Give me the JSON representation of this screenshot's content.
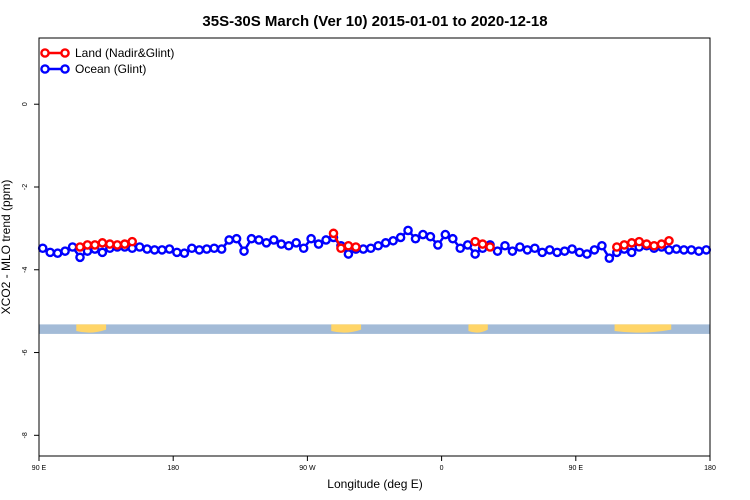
{
  "chart_data": {
    "type": "line",
    "title": "35S-30S March (Ver 10)   2015-01-01 to 2020-12-18",
    "xlabel": "Longitude (deg E)",
    "ylabel": "XCO2 - MLO trend (ppm)",
    "x_ticks": [
      {
        "value": 90,
        "label": "90 E"
      },
      {
        "value": 180,
        "label": "180"
      },
      {
        "value": 270,
        "label": "90 W"
      },
      {
        "value": 360,
        "label": "0"
      },
      {
        "value": 450,
        "label": "90 E"
      },
      {
        "value": 540,
        "label": "180"
      }
    ],
    "y_ticks": [
      0,
      -2,
      -4,
      -6,
      -8
    ],
    "xlim": [
      90,
      540
    ],
    "ylim": [
      -8.5,
      1.6
    ],
    "grid": false,
    "legend_position": "top-left",
    "series": [
      {
        "name": "Land (Nadir&Glint)",
        "color": "#ff0000",
        "x": [
          117.5,
          122.5,
          127.5,
          132.5,
          137.5,
          142.5,
          147.5,
          152.5,
          287.5,
          292.5,
          297.5,
          302.5,
          382.5,
          387.5,
          392.5,
          477.5,
          482.5,
          487.5,
          492.5,
          497.5,
          502.5,
          507.5,
          512.5
        ],
        "y": [
          -3.45,
          -3.4,
          -3.4,
          -3.35,
          -3.38,
          -3.4,
          -3.38,
          -3.32,
          -3.12,
          -3.48,
          -3.42,
          -3.45,
          -3.32,
          -3.38,
          -3.45,
          -3.45,
          -3.4,
          -3.35,
          -3.32,
          -3.38,
          -3.42,
          -3.38,
          -3.3
        ]
      },
      {
        "name": "Ocean (Glint)",
        "color": "#0000ff",
        "x": [
          92.5,
          97.5,
          102.5,
          107.5,
          112.5,
          117.5,
          122.5,
          127.5,
          132.5,
          137.5,
          142.5,
          147.5,
          152.5,
          157.5,
          162.5,
          167.5,
          172.5,
          177.5,
          182.5,
          187.5,
          192.5,
          197.5,
          202.5,
          207.5,
          212.5,
          217.5,
          222.5,
          227.5,
          232.5,
          237.5,
          242.5,
          247.5,
          252.5,
          257.5,
          262.5,
          267.5,
          272.5,
          277.5,
          282.5,
          287.5,
          292.5,
          297.5,
          302.5,
          307.5,
          312.5,
          317.5,
          322.5,
          327.5,
          332.5,
          337.5,
          342.5,
          347.5,
          352.5,
          357.5,
          362.5,
          367.5,
          372.5,
          377.5,
          382.5,
          387.5,
          392.5,
          397.5,
          402.5,
          407.5,
          412.5,
          417.5,
          422.5,
          427.5,
          432.5,
          437.5,
          442.5,
          447.5,
          452.5,
          457.5,
          462.5,
          467.5,
          472.5,
          477.5,
          482.5,
          487.5,
          492.5,
          497.5,
          502.5,
          507.5,
          512.5,
          517.5,
          522.5,
          527.5,
          532.5,
          537.5
        ],
        "y": [
          -3.48,
          -3.58,
          -3.6,
          -3.55,
          -3.45,
          -3.7,
          -3.55,
          -3.5,
          -3.58,
          -3.48,
          -3.45,
          -3.45,
          -3.48,
          -3.45,
          -3.5,
          -3.52,
          -3.52,
          -3.5,
          -3.58,
          -3.6,
          -3.48,
          -3.52,
          -3.5,
          -3.48,
          -3.5,
          -3.28,
          -3.25,
          -3.55,
          -3.25,
          -3.28,
          -3.35,
          -3.28,
          -3.38,
          -3.42,
          -3.35,
          -3.48,
          -3.25,
          -3.38,
          -3.28,
          -3.22,
          -3.42,
          -3.62,
          -3.5,
          -3.5,
          -3.48,
          -3.42,
          -3.35,
          -3.3,
          -3.22,
          -3.05,
          -3.25,
          -3.15,
          -3.2,
          -3.4,
          -3.15,
          -3.25,
          -3.48,
          -3.4,
          -3.62,
          -3.48,
          -3.4,
          -3.55,
          -3.42,
          -3.55,
          -3.45,
          -3.52,
          -3.48,
          -3.58,
          -3.52,
          -3.58,
          -3.55,
          -3.5,
          -3.58,
          -3.62,
          -3.52,
          -3.42,
          -3.72,
          -3.58,
          -3.5,
          -3.58,
          -3.45,
          -3.42,
          -3.48,
          -3.45,
          -3.52,
          -3.5,
          -3.52,
          -3.52,
          -3.55,
          -3.52
        ]
      }
    ],
    "map_strip": {
      "y_range": [
        -5.32,
        -5.55
      ],
      "ocean_color": "#a3bbd7",
      "land_color": "#ffd568",
      "land_spans": [
        [
          115,
          135
        ],
        [
          286,
          306
        ],
        [
          378,
          391
        ],
        [
          476,
          514
        ]
      ]
    }
  }
}
